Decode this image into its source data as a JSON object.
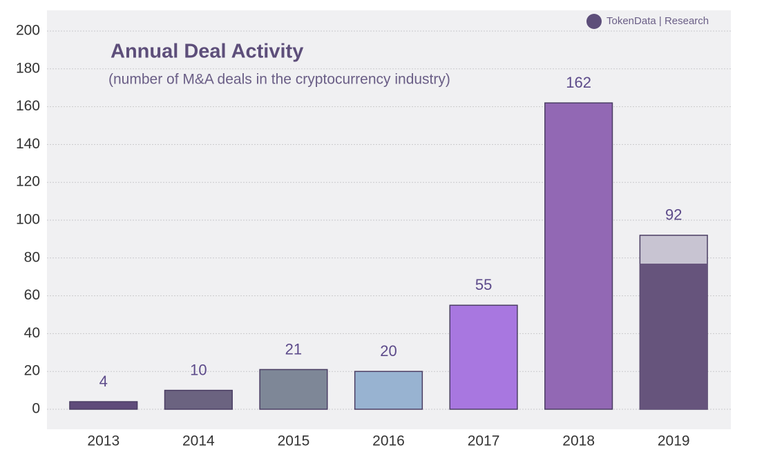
{
  "chart_data": {
    "type": "bar",
    "title": "Annual Deal Activity",
    "subtitle": "(number of M&A deals in the cryptocurrency industry)",
    "source": "TokenData | Research",
    "categories": [
      "2013",
      "2014",
      "2015",
      "2016",
      "2017",
      "2018",
      "2019"
    ],
    "values": [
      4,
      10,
      21,
      20,
      55,
      162,
      92
    ],
    "colors": [
      "#5f4b7a",
      "#6b6380",
      "#7e8797",
      "#98b3d1",
      "#a877e0",
      "#9268b4",
      "#c8c4d2"
    ],
    "overlay": {
      "values": [
        null,
        null,
        null,
        null,
        null,
        null,
        77
      ],
      "color": "#66547c"
    },
    "ylim": [
      -10,
      210
    ],
    "yticks": [
      0,
      20,
      40,
      60,
      80,
      100,
      120,
      140,
      160,
      180,
      200
    ],
    "grid": true
  }
}
